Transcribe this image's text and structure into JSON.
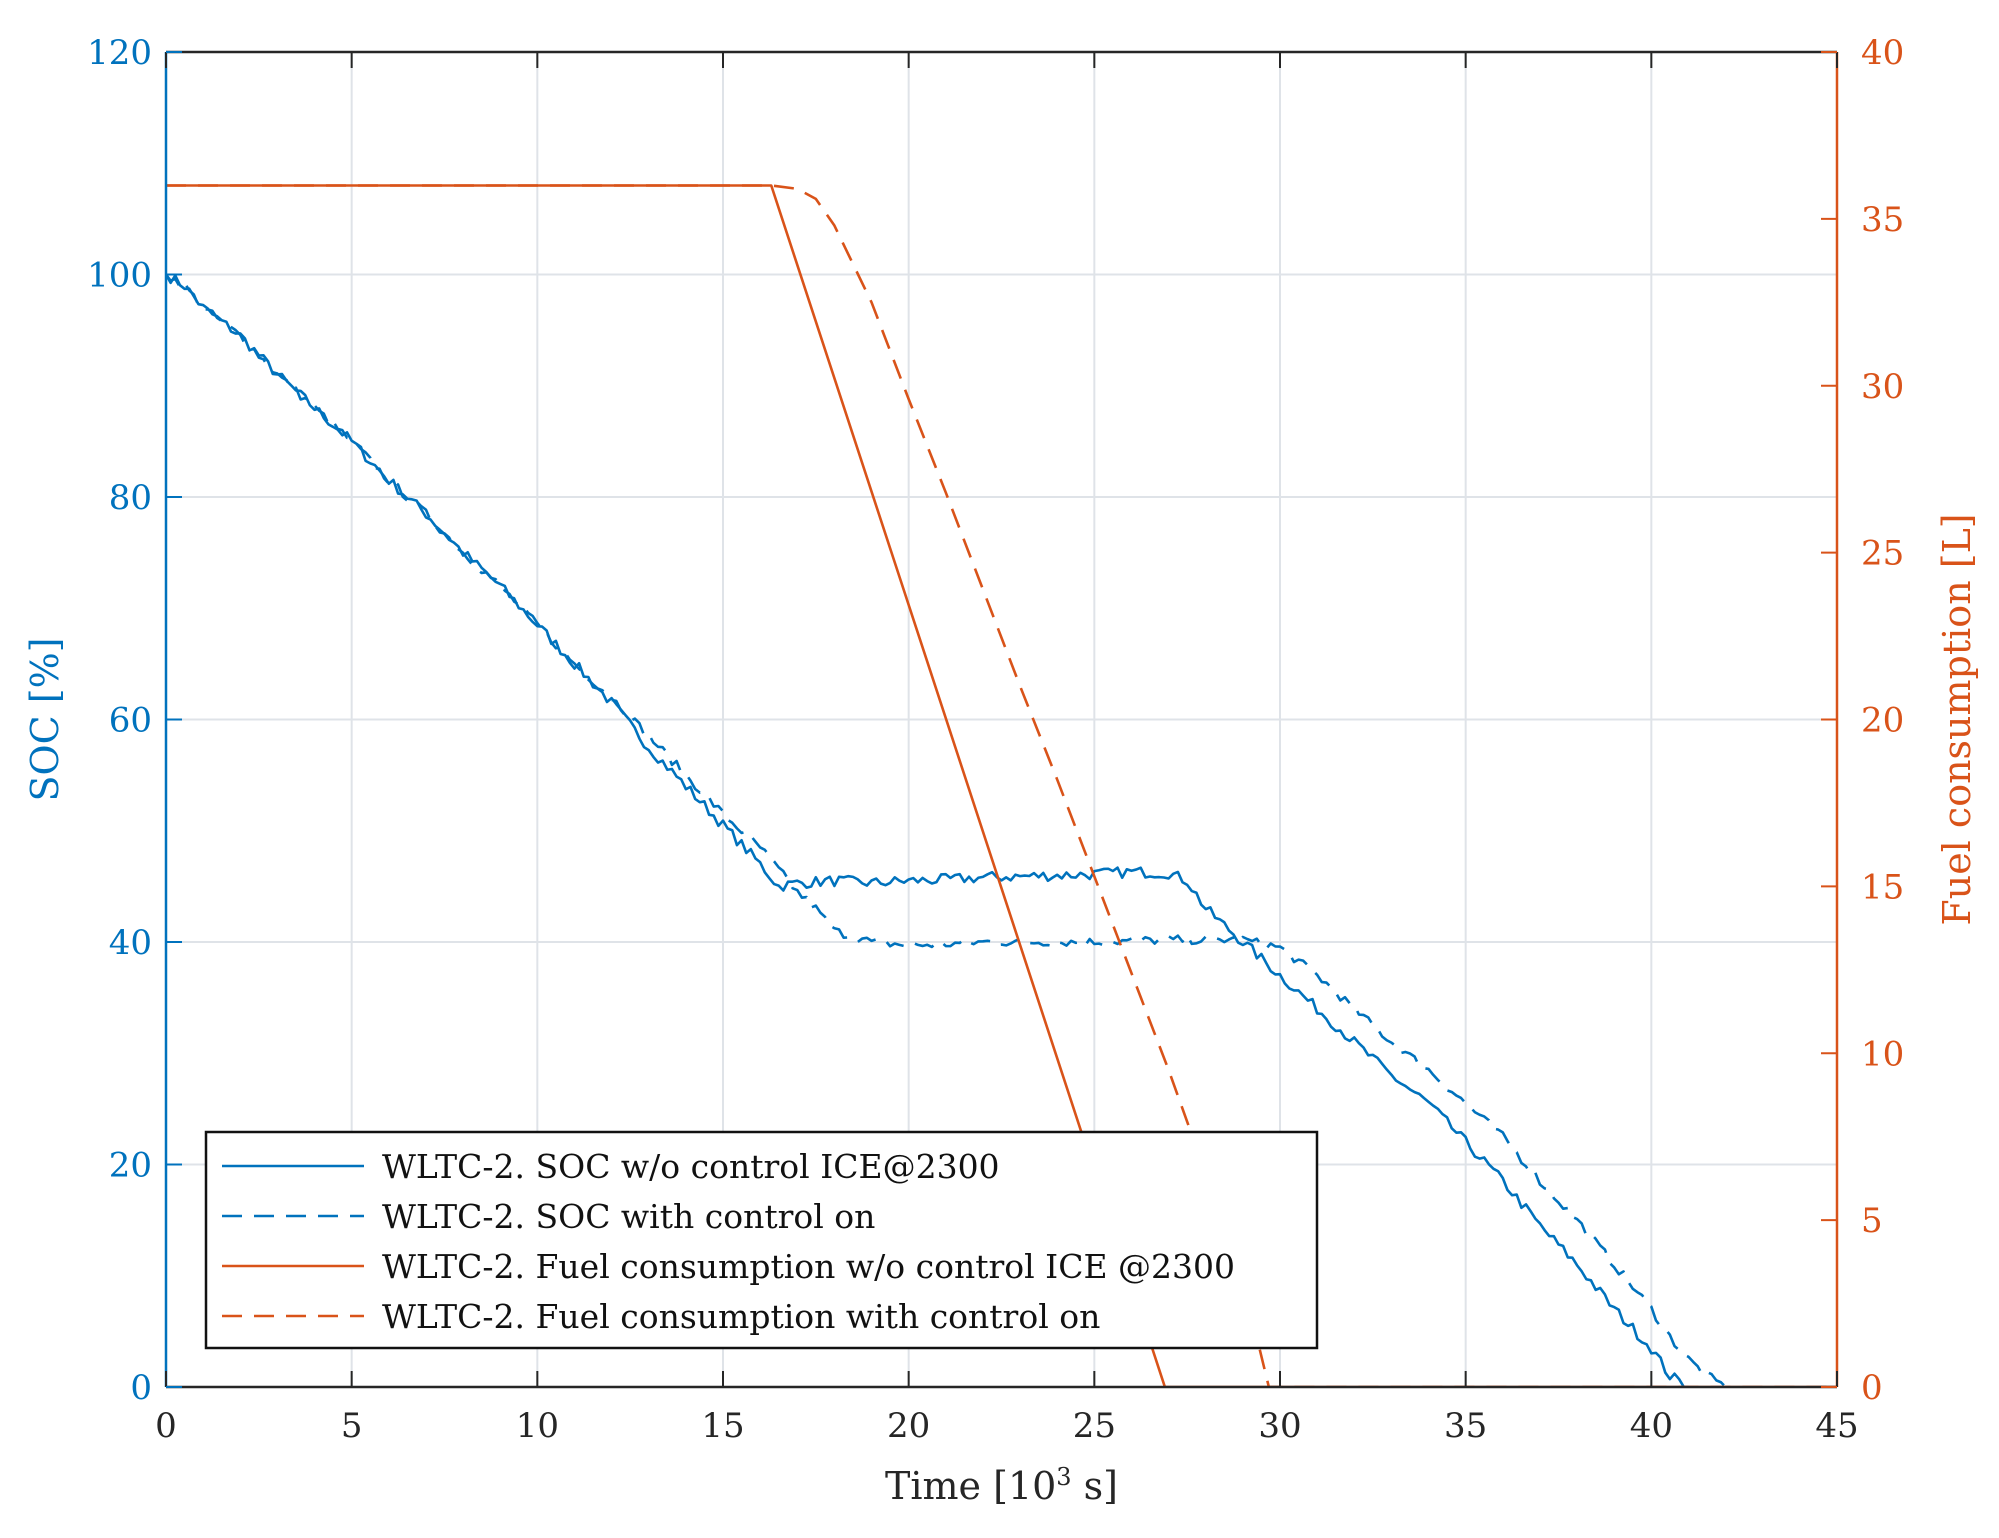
{
  "chart_data": {
    "type": "line",
    "xlabel": "Time [10",
    "xlabel_sup": "3",
    "xlabel_tail": " s]",
    "ylabel_left": "SOC [%]",
    "ylabel_right": "Fuel consumption [L]",
    "xlim": [
      0,
      45
    ],
    "ylim_left": [
      0,
      120
    ],
    "ylim_right": [
      0,
      40
    ],
    "x_ticks": [
      "0",
      "5",
      "10",
      "15",
      "20",
      "25",
      "30",
      "35",
      "40",
      "45"
    ],
    "y_ticks_left": [
      "0",
      "20",
      "40",
      "60",
      "80",
      "100",
      "120"
    ],
    "y_ticks_right": [
      "0",
      "5",
      "10",
      "15",
      "20",
      "25",
      "30",
      "35",
      "40"
    ],
    "grid": true,
    "legend_position": "bottom-left",
    "colors": {
      "soc": "#0072BD",
      "fuel": "#D95319",
      "grid": "#dfe3e8",
      "axis": "#262626"
    },
    "series": [
      {
        "name": "WLTC-2. SOC w/o control ICE@2300",
        "axis": "left",
        "style": "solid",
        "color": "#0072BD",
        "noise": 0.5,
        "x": [
          0,
          0.5,
          1,
          2,
          3,
          4,
          5,
          6,
          7,
          8,
          9,
          10,
          11,
          12,
          13,
          14,
          15,
          16,
          16.5,
          17,
          18,
          19,
          20,
          21,
          22,
          23,
          24,
          25,
          26,
          27,
          27.5,
          28,
          29,
          30,
          31,
          32,
          33,
          34,
          35,
          36,
          37,
          38,
          39,
          40,
          40.5,
          41
        ],
        "y": [
          100,
          99,
          97,
          94.5,
          91,
          88,
          85,
          81.5,
          78.5,
          75,
          72,
          68.5,
          65,
          61.5,
          57.5,
          54,
          50.5,
          47,
          45,
          45.3,
          45.5,
          45.3,
          45.5,
          45.6,
          45.8,
          45.9,
          46,
          46.1,
          46.3,
          46.2,
          45.5,
          43,
          40,
          37,
          34,
          31,
          28,
          25.5,
          22,
          18.5,
          14.5,
          11,
          7,
          3.5,
          1,
          0
        ]
      },
      {
        "name": "WLTC-2. SOC with control on",
        "axis": "left",
        "style": "dashed",
        "color": "#0072BD",
        "noise": 0.4,
        "x": [
          0,
          0.5,
          1,
          2,
          3,
          4,
          5,
          6,
          7,
          8,
          9,
          10,
          11,
          12,
          13,
          14,
          15,
          16,
          16.5,
          17,
          17.5,
          18,
          19,
          20,
          21,
          22,
          23,
          24,
          25,
          26,
          27,
          28,
          29,
          30,
          31,
          32,
          33,
          34,
          35,
          36,
          37,
          38,
          39,
          40,
          40.5,
          41,
          41.5,
          42
        ],
        "y": [
          100,
          99,
          97,
          94.5,
          91,
          88,
          85,
          81.5,
          78.5,
          75,
          72,
          68.5,
          65,
          62,
          58.5,
          55,
          51.5,
          48.5,
          46.5,
          44.5,
          43,
          41,
          40,
          39.7,
          39.8,
          40,
          40,
          40,
          40,
          40.1,
          40.2,
          40.2,
          40.2,
          39.5,
          37,
          34,
          31,
          28.5,
          25.5,
          22.5,
          18.5,
          15,
          11,
          7,
          4.5,
          2.5,
          1,
          0
        ]
      },
      {
        "name": "WLTC-2. Fuel consumption w/o control ICE @2300",
        "axis": "right",
        "style": "solid",
        "color": "#D95319",
        "noise": 0,
        "x": [
          0,
          16.3,
          26.9,
          45
        ],
        "y": [
          36,
          36,
          0,
          0
        ]
      },
      {
        "name": "WLTC-2. Fuel consumption with control on",
        "axis": "right",
        "style": "dashed",
        "color": "#D95319",
        "noise": 0,
        "x": [
          0,
          16.3,
          17,
          17.5,
          18,
          19,
          20,
          21,
          22,
          23,
          24,
          25,
          26,
          27,
          28,
          29,
          29.7,
          45
        ],
        "y": [
          36,
          36,
          35.9,
          35.6,
          34.8,
          32.5,
          29.6,
          26.8,
          23.9,
          21,
          18.2,
          15.3,
          12.4,
          9.5,
          6.4,
          3.2,
          0,
          0
        ]
      }
    ]
  }
}
